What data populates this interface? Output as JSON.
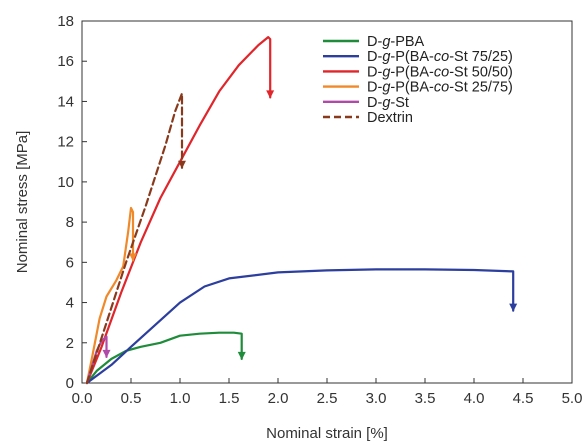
{
  "chart_data": {
    "type": "line",
    "title": "",
    "xlabel": "Nominal strain [%]",
    "ylabel": "Nominal stress [MPa]",
    "xlim": [
      0,
      5
    ],
    "ylim": [
      0,
      18
    ],
    "xticks": [
      0,
      0.5,
      1,
      1.5,
      2,
      2.5,
      3,
      3.5,
      4,
      4.5,
      5
    ],
    "yticks": [
      0,
      2,
      4,
      6,
      8,
      10,
      12,
      14,
      16,
      18
    ],
    "xtick_labels": [
      "0.0",
      "0.5",
      "1.0",
      "1.5",
      "2.0",
      "2.5",
      "3.0",
      "3.5",
      "4.0",
      "4.5",
      "5.0"
    ],
    "ytick_labels": [
      "0",
      "2",
      "4",
      "6",
      "8",
      "10",
      "12",
      "14",
      "16",
      "18"
    ],
    "grid": false,
    "legend_position": "top-right",
    "series": [
      {
        "name_parts": [
          {
            "t": "D-",
            "i": false
          },
          {
            "t": "g",
            "i": true
          },
          {
            "t": "-PBA",
            "i": false
          }
        ],
        "color": "#1e8c3a",
        "dash": false,
        "points": [
          [
            0.05,
            0
          ],
          [
            0.15,
            0.6
          ],
          [
            0.3,
            1.2
          ],
          [
            0.45,
            1.6
          ],
          [
            0.6,
            1.8
          ],
          [
            0.8,
            2.0
          ],
          [
            1.0,
            2.35
          ],
          [
            1.2,
            2.45
          ],
          [
            1.4,
            2.5
          ],
          [
            1.55,
            2.5
          ],
          [
            1.63,
            2.45
          ],
          [
            1.63,
            1.2
          ]
        ]
      },
      {
        "name_parts": [
          {
            "t": "D-",
            "i": false
          },
          {
            "t": "g",
            "i": true
          },
          {
            "t": "-P(BA-",
            "i": false
          },
          {
            "t": "co",
            "i": true
          },
          {
            "t": "-St 75/25)",
            "i": false
          }
        ],
        "color": "#2c3e9e",
        "dash": false,
        "points": [
          [
            0.05,
            0
          ],
          [
            0.3,
            0.9
          ],
          [
            0.5,
            1.8
          ],
          [
            0.75,
            2.9
          ],
          [
            1.0,
            4.0
          ],
          [
            1.25,
            4.8
          ],
          [
            1.5,
            5.2
          ],
          [
            2.0,
            5.5
          ],
          [
            2.5,
            5.6
          ],
          [
            3.0,
            5.65
          ],
          [
            3.5,
            5.65
          ],
          [
            4.0,
            5.62
          ],
          [
            4.4,
            5.55
          ],
          [
            4.4,
            3.6
          ]
        ]
      },
      {
        "name_parts": [
          {
            "t": "D-",
            "i": false
          },
          {
            "t": "g",
            "i": true
          },
          {
            "t": "-P(BA-",
            "i": false
          },
          {
            "t": "co",
            "i": true
          },
          {
            "t": "-St 50/50)",
            "i": false
          }
        ],
        "color": "#e0262b",
        "dash": false,
        "points": [
          [
            0.05,
            0
          ],
          [
            0.2,
            1.8
          ],
          [
            0.4,
            4.5
          ],
          [
            0.6,
            7.0
          ],
          [
            0.8,
            9.2
          ],
          [
            1.0,
            11.0
          ],
          [
            1.2,
            12.8
          ],
          [
            1.4,
            14.5
          ],
          [
            1.6,
            15.8
          ],
          [
            1.8,
            16.8
          ],
          [
            1.9,
            17.2
          ],
          [
            1.92,
            17.1
          ],
          [
            1.92,
            14.2
          ]
        ]
      },
      {
        "name_parts": [
          {
            "t": "D-",
            "i": false
          },
          {
            "t": "g",
            "i": true
          },
          {
            "t": "-P(BA-",
            "i": false
          },
          {
            "t": "co",
            "i": true
          },
          {
            "t": "-St 25/75)",
            "i": false
          }
        ],
        "color": "#f0892a",
        "dash": false,
        "points": [
          [
            0.05,
            0
          ],
          [
            0.1,
            1.2
          ],
          [
            0.18,
            3.2
          ],
          [
            0.25,
            4.3
          ],
          [
            0.35,
            5.1
          ],
          [
            0.42,
            5.8
          ],
          [
            0.47,
            7.5
          ],
          [
            0.5,
            8.7
          ],
          [
            0.52,
            8.5
          ],
          [
            0.52,
            6.1
          ]
        ]
      },
      {
        "name_parts": [
          {
            "t": "D-",
            "i": false
          },
          {
            "t": "g",
            "i": true
          },
          {
            "t": "-St",
            "i": false
          }
        ],
        "color": "#b04aa8",
        "dash": false,
        "points": [
          [
            0.05,
            0
          ],
          [
            0.1,
            0.8
          ],
          [
            0.15,
            1.6
          ],
          [
            0.2,
            2.1
          ],
          [
            0.25,
            2.3
          ],
          [
            0.25,
            1.3
          ]
        ]
      },
      {
        "name_parts": [
          {
            "t": "Dextrin",
            "i": false
          }
        ],
        "color": "#8a3a1c",
        "dash": true,
        "points": [
          [
            0.05,
            0
          ],
          [
            0.25,
            3.0
          ],
          [
            0.45,
            6.0
          ],
          [
            0.65,
            8.8
          ],
          [
            0.85,
            11.8
          ],
          [
            0.95,
            13.5
          ],
          [
            1.02,
            14.4
          ],
          [
            1.02,
            10.7
          ]
        ]
      }
    ]
  }
}
